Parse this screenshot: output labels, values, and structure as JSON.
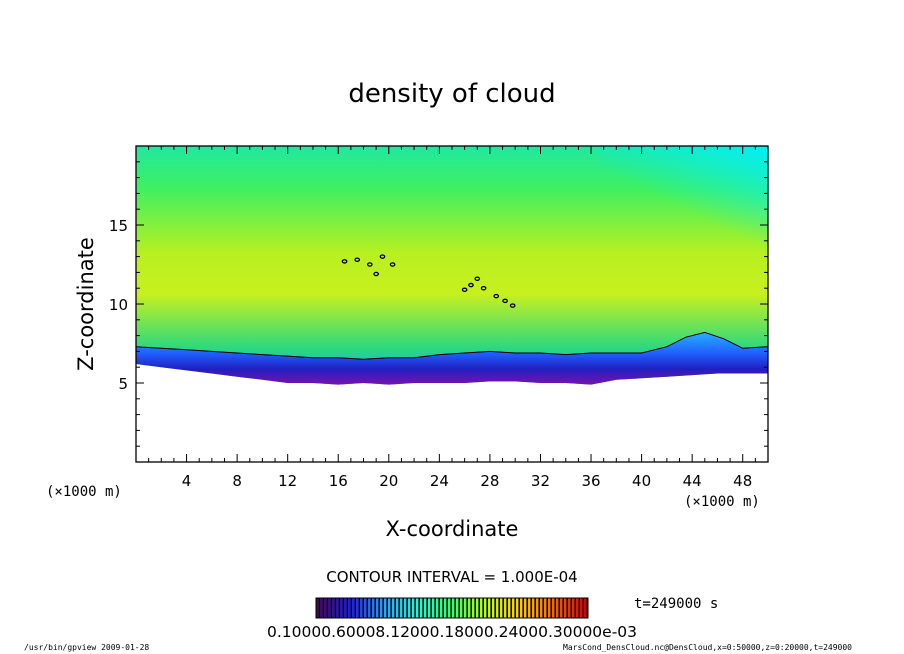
{
  "chart_data": {
    "type": "heatmap",
    "title": "density of cloud",
    "xlabel": "X-coordinate",
    "ylabel": "Z-coordinate",
    "x_unit_left": "(×1000 m)",
    "x_unit_right": "(×1000 m)",
    "xlim": [
      0,
      50
    ],
    "ylim": [
      0,
      20
    ],
    "xticks": [
      4,
      8,
      12,
      16,
      20,
      24,
      28,
      32,
      36,
      40,
      44,
      48
    ],
    "yticks": [
      5,
      10,
      15
    ],
    "contour_interval_text": "CONTOUR INTERVAL = 1.000E-04",
    "time_text": "t=249000 s",
    "colorbar_labels_text": "0.10000.60008.12000.18000.24000.30000e-03",
    "colorbar_colors": [
      "#4a006a",
      "#1a1aff",
      "#2aa0ff",
      "#2ef0d0",
      "#33ff66",
      "#b0ff20",
      "#ffd000",
      "#ff6a00",
      "#e00000"
    ],
    "cloud_base": [
      [
        0,
        6.2
      ],
      [
        2,
        6.0
      ],
      [
        4,
        5.8
      ],
      [
        6,
        5.6
      ],
      [
        8,
        5.4
      ],
      [
        10,
        5.2
      ],
      [
        12,
        5.0
      ],
      [
        14,
        5.0
      ],
      [
        16,
        4.9
      ],
      [
        18,
        5.0
      ],
      [
        20,
        4.9
      ],
      [
        22,
        5.0
      ],
      [
        24,
        5.0
      ],
      [
        26,
        5.0
      ],
      [
        28,
        5.1
      ],
      [
        30,
        5.1
      ],
      [
        32,
        5.0
      ],
      [
        34,
        5.0
      ],
      [
        36,
        4.9
      ],
      [
        38,
        5.2
      ],
      [
        40,
        5.3
      ],
      [
        42,
        5.4
      ],
      [
        44,
        5.5
      ],
      [
        46,
        5.6
      ],
      [
        48,
        5.6
      ],
      [
        50,
        5.6
      ]
    ],
    "contour_line": [
      [
        0,
        7.3
      ],
      [
        2,
        7.2
      ],
      [
        4,
        7.1
      ],
      [
        6,
        7.0
      ],
      [
        8,
        6.9
      ],
      [
        10,
        6.8
      ],
      [
        12,
        6.7
      ],
      [
        14,
        6.6
      ],
      [
        16,
        6.6
      ],
      [
        18,
        6.5
      ],
      [
        20,
        6.6
      ],
      [
        22,
        6.6
      ],
      [
        24,
        6.8
      ],
      [
        26,
        6.9
      ],
      [
        28,
        7.0
      ],
      [
        30,
        6.9
      ],
      [
        32,
        6.9
      ],
      [
        34,
        6.8
      ],
      [
        36,
        6.9
      ],
      [
        38,
        6.9
      ],
      [
        40,
        6.9
      ],
      [
        42,
        7.3
      ],
      [
        43.5,
        7.9
      ],
      [
        45,
        8.2
      ],
      [
        46.5,
        7.8
      ],
      [
        48,
        7.2
      ],
      [
        50,
        7.3
      ]
    ],
    "contour_blobs": [
      [
        16.5,
        12.7
      ],
      [
        17.5,
        12.8
      ],
      [
        18.5,
        12.5
      ],
      [
        19.5,
        13.0
      ],
      [
        20.3,
        12.5
      ],
      [
        19,
        11.9
      ],
      [
        26,
        10.9
      ],
      [
        26.5,
        11.2
      ],
      [
        27,
        11.6
      ],
      [
        27.5,
        11.0
      ],
      [
        28.5,
        10.5
      ],
      [
        29.2,
        10.2
      ],
      [
        29.8,
        9.9
      ]
    ],
    "annotation_left": "/usr/bin/gpview  2009-01-28",
    "annotation_right": "MarsCond_DensCloud.nc@DensCloud,x=0:50000,z=0:20000,t=249000"
  }
}
